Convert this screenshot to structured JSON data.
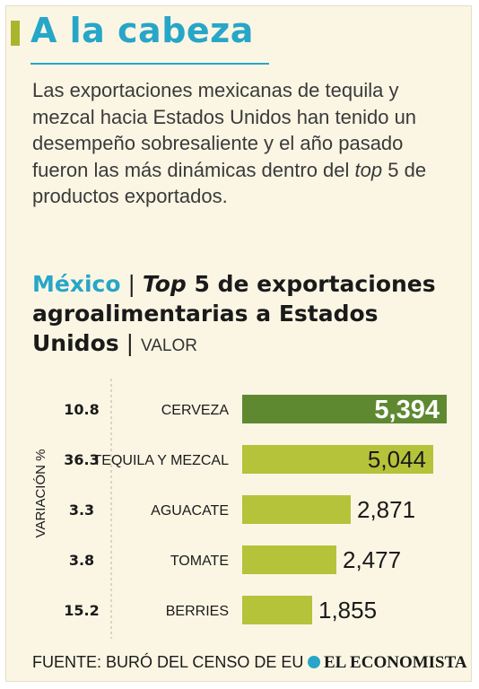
{
  "header": {
    "title": "A la cabeza",
    "intro_before": "Las exportaciones mexicanas de tequila y mezcal hacia Estados Unidos han tenido un desempeño sobresaliente y el año pasado fueron las más dinámicas dentro del ",
    "intro_italic": "top",
    "intro_after": " 5 de productos exportados."
  },
  "chart_title": {
    "country": "México",
    "sep": " | ",
    "top_word": "Top",
    "rest": " 5 de exportaciones agroalimentarias a Estados Unidos",
    "sep2": " | ",
    "metric": "VALOR"
  },
  "chart_data": {
    "type": "bar",
    "orientation": "horizontal",
    "categories": [
      "CERVEZA",
      "TEQUILA Y MEZCAL",
      "AGUACATE",
      "TOMATE",
      "BERRIES"
    ],
    "values": [
      5394,
      5044,
      2871,
      2477,
      1855
    ],
    "value_labels": [
      "5,394",
      "5,044",
      "2,871",
      "2,477",
      "1,855"
    ],
    "variation": [
      10.8,
      36.3,
      3.3,
      3.8,
      15.2
    ],
    "variation_labels": [
      "10.8",
      "36.3",
      "3.3",
      "3.8",
      "15.2"
    ],
    "variation_axis_label": "VARIACIÓN %",
    "xlim": [
      0,
      5394
    ],
    "highlight_index": 0
  },
  "colors": {
    "highlight_bar": "#5e8931",
    "bar": "#b5c33a",
    "accent_blue": "#27a6c8"
  },
  "footer": {
    "source": "FUENTE: BURÓ DEL CENSO DE EU",
    "brand": "EL ECONOMISTA",
    "brand_icon": "swirl-logo-icon"
  }
}
